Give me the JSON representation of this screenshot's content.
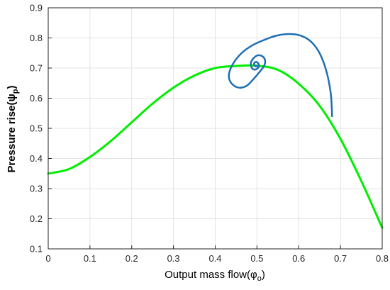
{
  "chart_data": {
    "type": "line",
    "xlabel": "Output mass flow(φ",
    "xlabel_sub": "o",
    "xlabel_close": ")",
    "ylabel": "Pressure rise(ψ",
    "ylabel_sub": "p",
    "ylabel_close": ")",
    "xlim": [
      0,
      0.8
    ],
    "ylim": [
      0.1,
      0.9
    ],
    "x_ticks": [
      "0",
      "0.1",
      "0.2",
      "0.3",
      "0.4",
      "0.5",
      "0.6",
      "0.7",
      "0.8"
    ],
    "y_ticks": [
      "0.1",
      "0.2",
      "0.3",
      "0.4",
      "0.5",
      "0.6",
      "0.7",
      "0.8",
      "0.9"
    ],
    "grid": true,
    "series": [
      {
        "color": "#00ee00",
        "x": [
          0,
          0.05,
          0.1,
          0.15,
          0.2,
          0.25,
          0.3,
          0.35,
          0.4,
          0.45,
          0.5,
          0.55,
          0.6,
          0.65,
          0.7,
          0.75,
          0.8
        ],
        "y": [
          0.35,
          0.365,
          0.405,
          0.458,
          0.52,
          0.582,
          0.635,
          0.675,
          0.7,
          0.707,
          0.708,
          0.694,
          0.648,
          0.575,
          0.465,
          0.325,
          0.17
        ]
      },
      {
        "color": "#1f6fb2",
        "x": [
          0.68,
          0.677,
          0.667,
          0.651,
          0.63,
          0.604,
          0.575,
          0.545,
          0.515,
          0.487,
          0.462,
          0.443,
          0.433,
          0.437,
          0.453,
          0.474,
          0.492,
          0.508,
          0.518,
          0.519,
          0.512,
          0.501,
          0.492,
          0.486,
          0.486,
          0.49,
          0.496,
          0.502,
          0.505,
          0.503,
          0.499,
          0.495,
          0.493,
          0.494,
          0.497,
          0.5
        ],
        "y": [
          0.54,
          0.613,
          0.686,
          0.747,
          0.787,
          0.808,
          0.813,
          0.807,
          0.792,
          0.774,
          0.748,
          0.715,
          0.68,
          0.653,
          0.636,
          0.64,
          0.664,
          0.69,
          0.71,
          0.728,
          0.74,
          0.742,
          0.733,
          0.72,
          0.707,
          0.697,
          0.695,
          0.7,
          0.708,
          0.716,
          0.72,
          0.719,
          0.714,
          0.709,
          0.706,
          0.707
        ]
      }
    ]
  }
}
